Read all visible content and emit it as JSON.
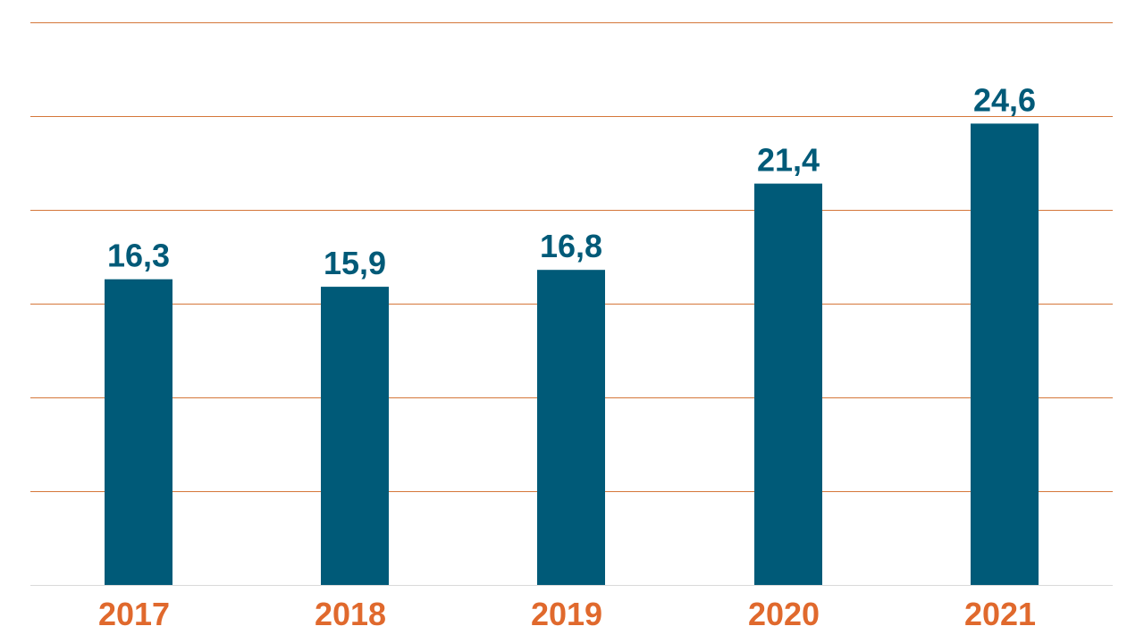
{
  "chart_data": {
    "type": "bar",
    "categories": [
      "2017",
      "2018",
      "2019",
      "2020",
      "2021"
    ],
    "values": [
      16.3,
      15.9,
      16.8,
      21.4,
      24.6
    ],
    "value_labels": [
      "16,3",
      "15,9",
      "16,8",
      "21,4",
      "24,6"
    ],
    "title": "",
    "xlabel": "",
    "ylabel": "",
    "ylim": [
      0,
      30
    ],
    "grid": true,
    "legend": "none",
    "colors": {
      "bar": "#005a78",
      "value_label": "#005a78",
      "category_label": "#e0692d",
      "gridline": "#d5773a"
    }
  }
}
